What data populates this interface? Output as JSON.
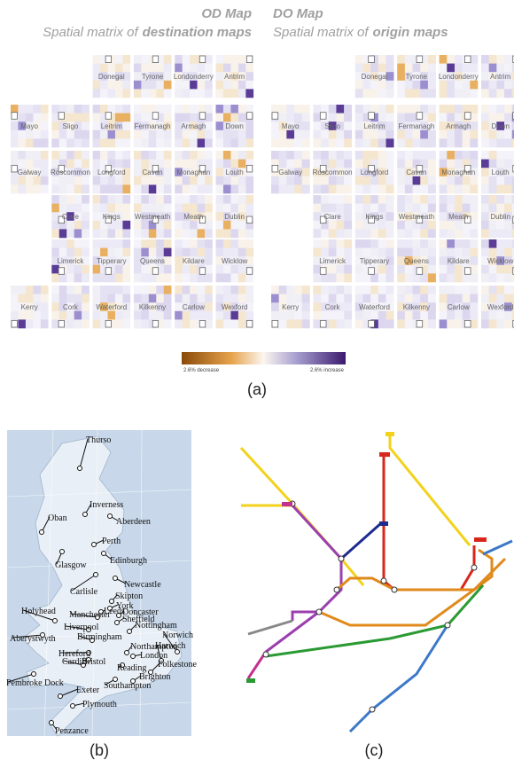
{
  "panel_a": {
    "od_title": "OD Map",
    "od_subtitle": "Spatial matrix of",
    "od_subtitle_bold": "destination maps",
    "do_title": "DO Map",
    "do_subtitle": "Spatial matrix of",
    "do_subtitle_bold": "origin maps",
    "grid": [
      [
        null,
        null,
        "Donegal",
        "Tyrone",
        "Londonderry",
        "Antrim"
      ],
      [
        "Mayo",
        "Sligo",
        "Leitrim",
        "Fermanagh",
        "Armagh",
        "Down"
      ],
      [
        "Galway",
        "Roscommon",
        "Longford",
        "Cavan",
        "Monaghan",
        "Louth"
      ],
      [
        null,
        "Clare",
        "Kings",
        "Westmeath",
        "Meath",
        "Dublin"
      ],
      [
        null,
        "Limerick",
        "Tipperary",
        "Queens",
        "Kildare",
        "Wicklow"
      ],
      [
        "Kerry",
        "Cork",
        "Waterford",
        "Kilkenny",
        "Carlow",
        "Wexford"
      ]
    ],
    "legend": {
      "low_label": "2.6% decrease",
      "high_label": "2.6% increase"
    },
    "caption": "(a)"
  },
  "panel_b": {
    "cities": [
      "Thurso",
      "Inverness",
      "Oban",
      "Aberdeen",
      "Perth",
      "Glasgow",
      "Edinburgh",
      "Carlisle",
      "Newcastle",
      "Skipton",
      "York",
      "Leeds",
      "Doncaster",
      "Holyhead",
      "Manchester",
      "Sheffield",
      "Nottingham",
      "Liverpool",
      "Aberystwyth",
      "Birmingham",
      "Northampton",
      "Norwich",
      "London",
      "Harwich",
      "Hereford",
      "Cardiff",
      "Bristol",
      "Reading",
      "Folkestone",
      "Brighton",
      "Pembroke Dock",
      "Southampton",
      "Exeter",
      "Plymouth",
      "Penzance"
    ],
    "caption": "(b)"
  },
  "panel_c": {
    "caption": "(c)"
  }
}
